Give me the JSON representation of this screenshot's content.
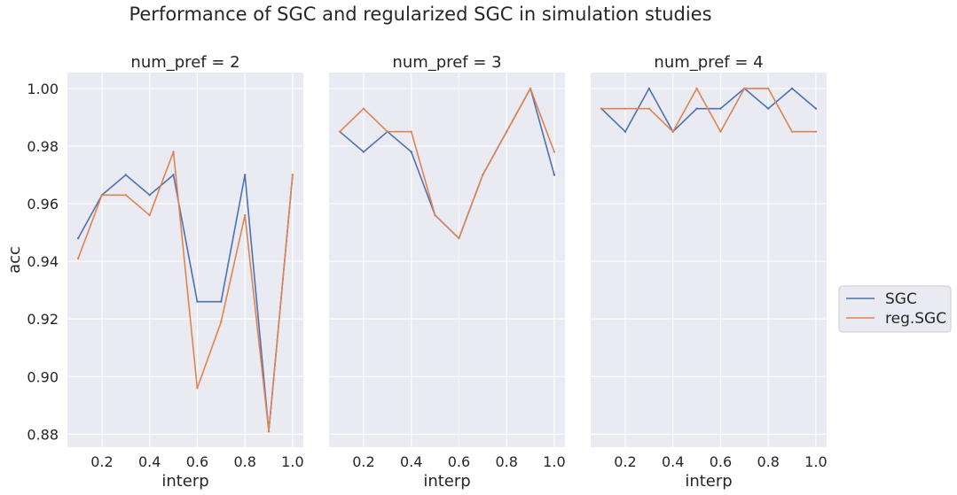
{
  "title": "Performance of SGC and regularized SGC in simulation studies",
  "style": {
    "panel_bg": "#EAEAF2",
    "grid_color": "#FFFFFF",
    "text_color": "#262626"
  },
  "legend": {
    "placement": "right",
    "entries": [
      {
        "label": "SGC",
        "color": "#4C72B0"
      },
      {
        "label": "reg.SGC",
        "color": "#DD8452"
      }
    ]
  },
  "chart_data": [
    {
      "type": "line",
      "title": "num_pref = 2",
      "xlabel": "interp",
      "ylabel": "acc",
      "x": [
        0.1,
        0.2,
        0.3,
        0.4,
        0.5,
        0.6,
        0.7,
        0.8,
        0.9,
        1.0
      ],
      "xticks": [
        "0.2",
        "0.4",
        "0.6",
        "0.8",
        "1.0"
      ],
      "yticks": [
        "0.88",
        "0.90",
        "0.92",
        "0.94",
        "0.96",
        "0.98",
        "1.00"
      ],
      "xlim": [
        0.055,
        1.045
      ],
      "ylim": [
        0.8755,
        1.0055
      ],
      "grid": true,
      "series": [
        {
          "name": "SGC",
          "color": "#4C72B0",
          "values": [
            0.948,
            0.963,
            0.97,
            0.963,
            0.97,
            0.926,
            0.926,
            0.97,
            0.881,
            0.97
          ]
        },
        {
          "name": "reg.SGC",
          "color": "#DD8452",
          "values": [
            0.941,
            0.963,
            0.963,
            0.956,
            0.978,
            0.896,
            0.919,
            0.956,
            0.881,
            0.97
          ]
        }
      ]
    },
    {
      "type": "line",
      "title": "num_pref = 3",
      "xlabel": "interp",
      "ylabel": "",
      "x": [
        0.1,
        0.2,
        0.3,
        0.4,
        0.5,
        0.6,
        0.7,
        0.8,
        0.9,
        1.0
      ],
      "xticks": [
        "0.2",
        "0.4",
        "0.6",
        "0.8",
        "1.0"
      ],
      "yticks": [],
      "xlim": [
        0.055,
        1.045
      ],
      "ylim": [
        0.8755,
        1.0055
      ],
      "grid": true,
      "series": [
        {
          "name": "SGC",
          "color": "#4C72B0",
          "values": [
            0.985,
            0.978,
            0.985,
            0.978,
            0.956,
            0.948,
            0.97,
            0.985,
            1.0,
            0.97
          ]
        },
        {
          "name": "reg.SGC",
          "color": "#DD8452",
          "values": [
            0.985,
            0.993,
            0.985,
            0.985,
            0.956,
            0.948,
            0.97,
            0.985,
            1.0,
            0.978
          ]
        }
      ]
    },
    {
      "type": "line",
      "title": "num_pref = 4",
      "xlabel": "interp",
      "ylabel": "",
      "x": [
        0.1,
        0.2,
        0.3,
        0.4,
        0.5,
        0.6,
        0.7,
        0.8,
        0.9,
        1.0
      ],
      "xticks": [
        "0.2",
        "0.4",
        "0.6",
        "0.8",
        "1.0"
      ],
      "yticks": [],
      "xlim": [
        0.055,
        1.045
      ],
      "ylim": [
        0.8755,
        1.0055
      ],
      "grid": true,
      "series": [
        {
          "name": "SGC",
          "color": "#4C72B0",
          "values": [
            0.993,
            0.985,
            1.0,
            0.985,
            0.993,
            0.993,
            1.0,
            0.993,
            1.0,
            0.993
          ]
        },
        {
          "name": "reg.SGC",
          "color": "#DD8452",
          "values": [
            0.993,
            0.993,
            0.993,
            0.985,
            1.0,
            0.985,
            1.0,
            1.0,
            0.985,
            0.985
          ]
        }
      ]
    }
  ]
}
